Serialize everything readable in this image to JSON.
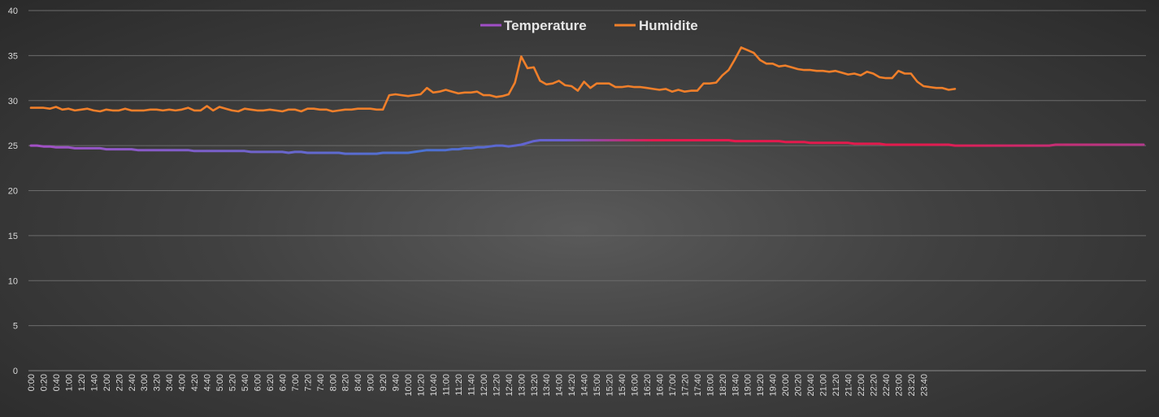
{
  "chart_data": {
    "type": "line",
    "title": "",
    "xlabel": "",
    "ylabel": "",
    "ylim": [
      0,
      40
    ],
    "yticks": [
      0,
      5,
      10,
      15,
      20,
      25,
      30,
      35,
      40
    ],
    "grid": true,
    "legend_position": "top-center",
    "x_interval_minutes": 10,
    "x_tick_labels": [
      "0:00",
      "0:20",
      "0:40",
      "1:00",
      "1:20",
      "1:40",
      "2:00",
      "2:20",
      "2:40",
      "3:00",
      "3:20",
      "3:40",
      "4:00",
      "4:20",
      "4:40",
      "5:00",
      "5:20",
      "5:40",
      "6:00",
      "6:20",
      "6:40",
      "7:00",
      "7:20",
      "7:40",
      "8:00",
      "8:20",
      "8:40",
      "9:00",
      "9:20",
      "9:40",
      "10:00",
      "10:20",
      "10:40",
      "11:00",
      "11:20",
      "11:40",
      "12:00",
      "12:20",
      "12:40",
      "13:00",
      "13:20",
      "13:40",
      "14:00",
      "14:20",
      "14:40",
      "15:00",
      "15:20",
      "15:40",
      "16:00",
      "16:20",
      "16:40",
      "17:00",
      "17:20",
      "17:40",
      "18:00",
      "18:20",
      "18:40",
      "19:00",
      "19:20",
      "19:40",
      "20:00",
      "20:20",
      "20:40",
      "21:00",
      "21:20",
      "21:40",
      "22:00",
      "22:20",
      "22:40",
      "23:00",
      "23:20",
      "23:40"
    ],
    "series": [
      {
        "name": "Temperature",
        "color": "#b04cc0",
        "gradient": [
          "#9a52c8",
          "#4f6fd0",
          "#e8174f"
        ],
        "values": [
          25.0,
          25.0,
          24.9,
          24.9,
          24.8,
          24.8,
          24.8,
          24.7,
          24.7,
          24.7,
          24.7,
          24.7,
          24.6,
          24.6,
          24.6,
          24.6,
          24.6,
          24.5,
          24.5,
          24.5,
          24.5,
          24.5,
          24.5,
          24.5,
          24.5,
          24.5,
          24.4,
          24.4,
          24.4,
          24.4,
          24.4,
          24.4,
          24.4,
          24.4,
          24.4,
          24.3,
          24.3,
          24.3,
          24.3,
          24.3,
          24.3,
          24.2,
          24.3,
          24.3,
          24.2,
          24.2,
          24.2,
          24.2,
          24.2,
          24.2,
          24.1,
          24.1,
          24.1,
          24.1,
          24.1,
          24.1,
          24.2,
          24.2,
          24.2,
          24.2,
          24.2,
          24.3,
          24.4,
          24.5,
          24.5,
          24.5,
          24.5,
          24.6,
          24.6,
          24.7,
          24.7,
          24.8,
          24.8,
          24.9,
          25.0,
          25.0,
          24.9,
          25.0,
          25.1,
          25.3,
          25.5,
          25.6,
          25.6,
          25.6,
          25.6,
          25.6,
          25.6,
          25.6,
          25.6,
          25.6,
          25.6,
          25.6,
          25.6,
          25.6,
          25.6,
          25.6,
          25.6,
          25.6,
          25.6,
          25.6,
          25.6,
          25.6,
          25.6,
          25.6,
          25.6,
          25.6,
          25.6,
          25.6,
          25.6,
          25.6,
          25.6,
          25.6,
          25.5,
          25.5,
          25.5,
          25.5,
          25.5,
          25.5,
          25.5,
          25.5,
          25.4,
          25.4,
          25.4,
          25.4,
          25.3,
          25.3,
          25.3,
          25.3,
          25.3,
          25.3,
          25.3,
          25.2,
          25.2,
          25.2,
          25.2,
          25.2,
          25.1,
          25.1,
          25.1,
          25.1,
          25.1,
          25.1,
          25.1,
          25.1,
          25.1,
          25.1,
          25.1,
          25.0,
          25.0,
          25.0,
          25.0,
          25.0,
          25.0,
          25.0,
          25.0,
          25.0,
          25.0,
          25.0,
          25.0,
          25.0,
          25.0,
          25.0,
          25.0,
          25.1,
          25.1,
          25.1,
          25.1,
          25.1,
          25.1,
          25.1,
          25.1,
          25.1,
          25.1,
          25.1,
          25.1,
          25.1,
          25.1,
          25.1
        ]
      },
      {
        "name": "Humidite",
        "color": "#f07f2a",
        "values": [
          29.2,
          29.2,
          29.2,
          29.1,
          29.3,
          29.0,
          29.1,
          28.9,
          29.0,
          29.1,
          28.9,
          28.8,
          29.0,
          28.9,
          28.9,
          29.1,
          28.9,
          28.9,
          28.9,
          29.0,
          29.0,
          28.9,
          29.0,
          28.9,
          29.0,
          29.2,
          28.9,
          28.9,
          29.4,
          28.9,
          29.3,
          29.1,
          28.9,
          28.8,
          29.1,
          29.0,
          28.9,
          28.9,
          29.0,
          28.9,
          28.8,
          29.0,
          29.0,
          28.8,
          29.1,
          29.1,
          29.0,
          29.0,
          28.8,
          28.9,
          29.0,
          29.0,
          29.1,
          29.1,
          29.1,
          29.0,
          29.0,
          30.6,
          30.7,
          30.6,
          30.5,
          30.6,
          30.7,
          31.4,
          30.9,
          31.0,
          31.2,
          31.0,
          30.8,
          30.9,
          30.9,
          31.0,
          30.6,
          30.6,
          30.4,
          30.5,
          30.7,
          32.0,
          34.9,
          33.6,
          33.7,
          32.2,
          31.8,
          31.9,
          32.2,
          31.7,
          31.6,
          31.1,
          32.1,
          31.4,
          31.9,
          31.9,
          31.9,
          31.5,
          31.5,
          31.6,
          31.5,
          31.5,
          31.4,
          31.3,
          31.2,
          31.3,
          31.0,
          31.2,
          31.0,
          31.1,
          31.1,
          31.9,
          31.9,
          32.0,
          32.8,
          33.4,
          34.6,
          35.9,
          35.6,
          35.3,
          34.5,
          34.1,
          34.1,
          33.8,
          33.9,
          33.7,
          33.5,
          33.4,
          33.4,
          33.3,
          33.3,
          33.2,
          33.3,
          33.1,
          32.9,
          33.0,
          32.8,
          33.2,
          33.0,
          32.6,
          32.5,
          32.5,
          33.3,
          33.0,
          33.0,
          32.1,
          31.6,
          31.5,
          31.4,
          31.4,
          31.2,
          31.3
        ]
      }
    ]
  }
}
